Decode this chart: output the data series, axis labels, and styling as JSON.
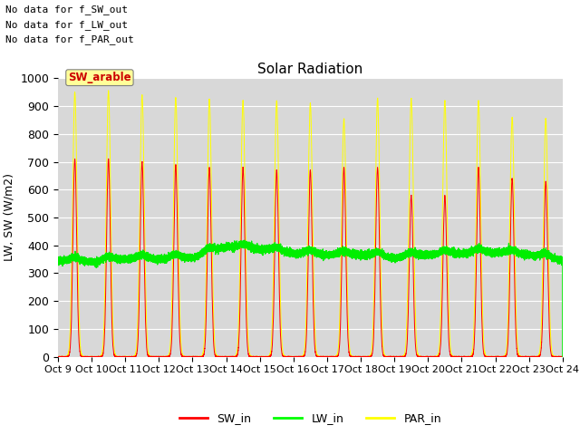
{
  "title": "Solar Radiation",
  "ylabel": "LW, SW (W/m2)",
  "ylim": [
    0,
    1000
  ],
  "num_days": 15,
  "text_lines": [
    "No data for f_SW_out",
    "No data for f_LW_out",
    "No data for f_PAR_out"
  ],
  "annotation_text": "SW_arable",
  "annotation_bg": "#ffff99",
  "annotation_text_color": "#cc0000",
  "tick_labels": [
    "Oct 9",
    "Oct 10",
    "Oct 11",
    "Oct 12",
    "Oct 13",
    "Oct 14",
    "Oct 15",
    "Oct 16",
    "Oct 17",
    "Oct 18",
    "Oct 19",
    "Oct 20",
    "Oct 21",
    "Oct 22",
    "Oct 23",
    "Oct 24"
  ],
  "plot_bg": "#d8d8d8",
  "sw_color": "red",
  "lw_color": "#00ee00",
  "par_color": "yellow",
  "sw_peaks": [
    710,
    710,
    700,
    690,
    680,
    680,
    670,
    670,
    680,
    680,
    580,
    580,
    680,
    640,
    630
  ],
  "par_peaks": [
    950,
    955,
    940,
    930,
    925,
    920,
    920,
    910,
    855,
    928,
    928,
    920,
    920,
    860,
    855
  ],
  "lw_values": [
    345,
    340,
    350,
    350,
    355,
    395,
    385,
    370,
    365,
    365,
    355,
    365,
    370,
    375,
    365,
    345
  ],
  "figsize": [
    6.4,
    4.8
  ],
  "dpi": 100
}
